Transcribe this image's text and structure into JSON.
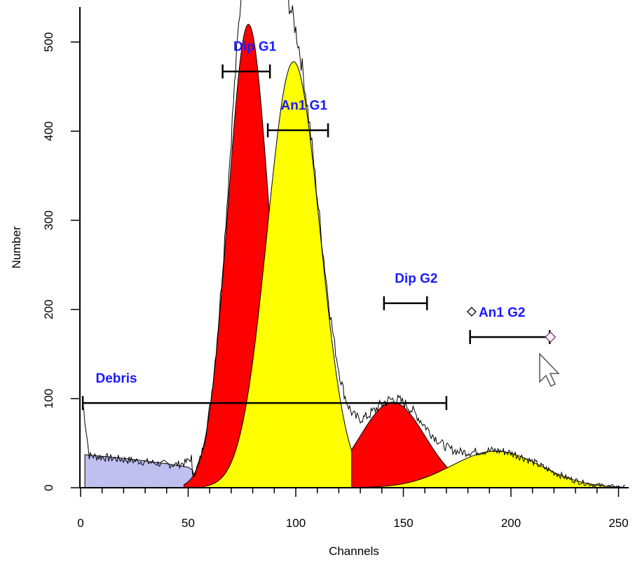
{
  "chart_data": {
    "type": "area",
    "title": "",
    "xlabel": "Channels",
    "ylabel": "Number",
    "xlim": [
      0,
      255
    ],
    "ylim": [
      0,
      540
    ],
    "xticks": [
      0,
      50,
      100,
      150,
      200,
      250
    ],
    "yticks": [
      0,
      100,
      200,
      300,
      400,
      500
    ],
    "grid": false,
    "series": [
      {
        "name": "",
        "fill": "#bfc0f0",
        "points": [
          [
            2,
            37
          ],
          [
            20,
            33
          ],
          [
            40,
            27
          ],
          [
            50,
            23
          ],
          [
            52,
            20
          ],
          [
            54,
            0
          ],
          [
            2,
            0
          ]
        ]
      },
      {
        "name": "",
        "fill": "#ff0000",
        "mean": 78,
        "sd": 9.5,
        "height": 520,
        "range": [
          48,
          110
        ]
      },
      {
        "name": "",
        "fill": "#ffff00",
        "mean": 99,
        "sd": 12.2,
        "height": 478,
        "range": [
          57,
          140
        ]
      },
      {
        "name": "",
        "fill": "#ff0000",
        "mean": 145,
        "sd": 15,
        "height": 96,
        "range": [
          126,
          175
        ]
      },
      {
        "name": "",
        "fill": "#ffff00",
        "mean": 193,
        "sd": 20.5,
        "height": 41,
        "range": [
          126,
          253
        ]
      }
    ],
    "regions": [
      {
        "label": "Debris",
        "x1": 1,
        "x2": 170,
        "y": 95,
        "label_x": 7,
        "label_y": 118
      },
      {
        "label": "Dip G1",
        "x1": 66,
        "x2": 88,
        "y": 467,
        "label_x": 71,
        "label_y": 490
      },
      {
        "label": "An1 G1",
        "x1": 87,
        "x2": 115,
        "y": 401,
        "label_x": 93,
        "label_y": 424
      },
      {
        "label": "Dip G2",
        "x1": 141,
        "x2": 161,
        "y": 207,
        "label_x": 146,
        "label_y": 230
      },
      {
        "label": "An1 G2",
        "x1": 181,
        "x2": 218,
        "y": 169,
        "label_x": 185,
        "label_y": 192
      }
    ]
  },
  "cursor_icon": "mouse-pointer-icon",
  "handle_icon": "diamond-handle-icon"
}
